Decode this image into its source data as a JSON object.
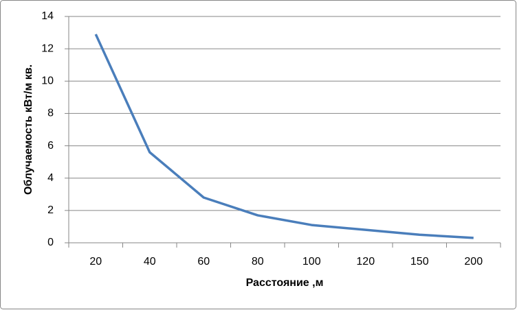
{
  "chart_data": {
    "type": "line",
    "y_label": "Облучаемость кВт/м кв.",
    "x_label": "Расстояние ,м",
    "categories": [
      "20",
      "40",
      "60",
      "80",
      "100",
      "120",
      "150",
      "200"
    ],
    "series": [
      {
        "name": "Облучаемость",
        "color": "#4a7ebb",
        "values": [
          12.9,
          5.6,
          2.8,
          1.7,
          1.1,
          0.8,
          0.5,
          0.3
        ]
      }
    ],
    "ylim": [
      0,
      14
    ],
    "yticks": [
      0,
      2,
      4,
      6,
      8,
      10,
      12,
      14
    ],
    "grid": true
  }
}
